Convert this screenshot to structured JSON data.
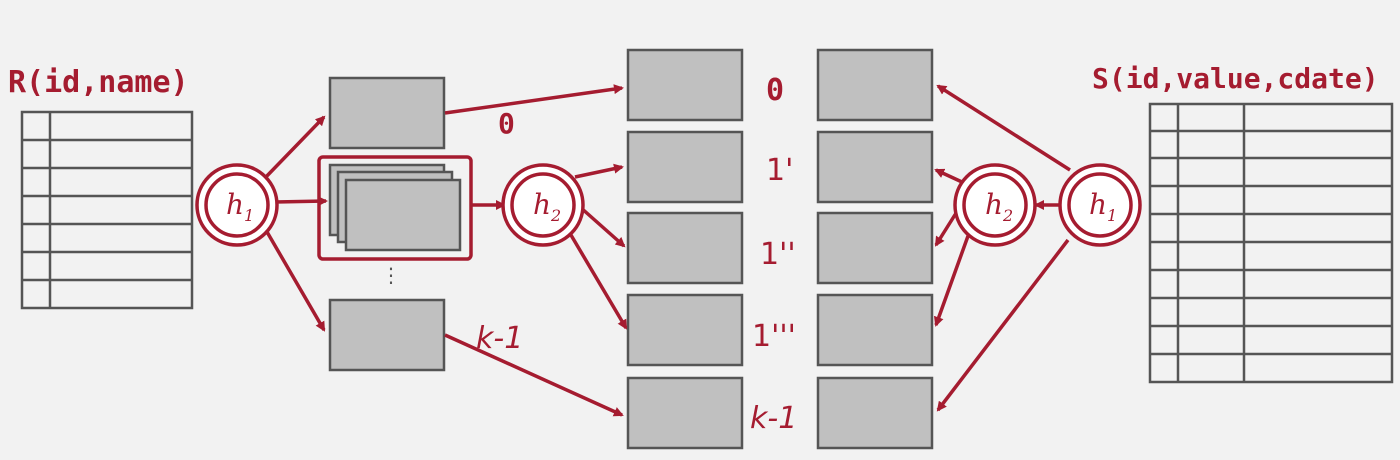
{
  "relations": {
    "left": {
      "title": "R(id,name)"
    },
    "right": {
      "title": "S(id,value,cdate)"
    }
  },
  "hash_functions": {
    "h1_left": {
      "base": "h",
      "sub": "1"
    },
    "h2_left": {
      "base": "h",
      "sub": "2"
    },
    "h2_right": {
      "base": "h",
      "sub": "2"
    },
    "h1_right": {
      "base": "h",
      "sub": "1"
    }
  },
  "partition_labels": {
    "p0": "0",
    "pk1": "k-1"
  },
  "bucket_labels": {
    "b0": "0",
    "b1": "1'",
    "b2": "1''",
    "b3": "1'''",
    "bk": "k-1"
  },
  "ellipsis": "⋮",
  "colors": {
    "accent": "#a51c30",
    "box_fill": "#c0c0c0",
    "box_stroke": "#555555",
    "background": "#f2f2f2"
  }
}
